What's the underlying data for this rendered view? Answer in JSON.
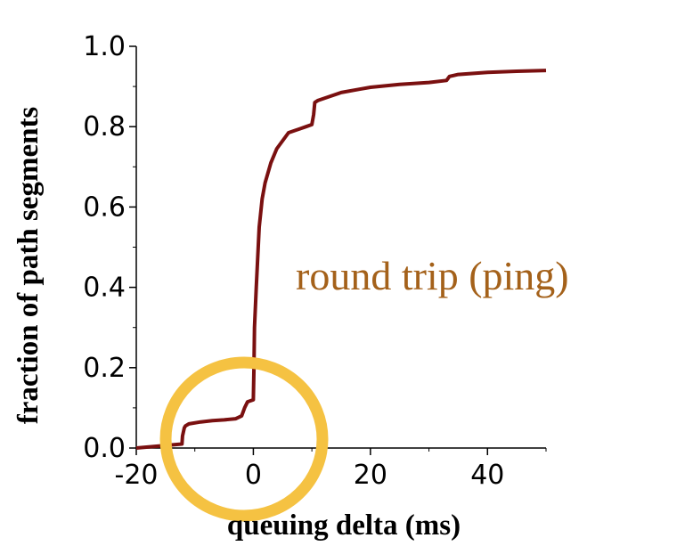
{
  "chart_data": {
    "type": "line",
    "xlabel": "queuing delta (ms)",
    "ylabel": "fraction of path segments",
    "xlim": [
      -20,
      50
    ],
    "ylim": [
      0,
      1.0
    ],
    "x_ticks": [
      "-20",
      "0",
      "20",
      "40"
    ],
    "y_ticks": [
      "0.0",
      "0.2",
      "0.4",
      "0.6",
      "0.8",
      "1.0"
    ],
    "grid": false,
    "annotation": "round trip (ping)",
    "series": [
      {
        "color": "#7a1010",
        "x": [
          -20,
          -12.2,
          -12.1,
          -11.8,
          -11.6,
          -11,
          -9,
          -7,
          -5,
          -3,
          -2,
          -1.5,
          -1,
          0,
          0.1,
          0.2,
          0.5,
          1,
          1.5,
          2,
          3,
          4,
          5,
          6,
          7,
          8,
          9,
          10,
          10.3,
          10.5,
          11,
          12,
          13,
          15,
          18,
          20,
          25,
          30,
          33,
          33.5,
          35,
          40,
          45,
          50
        ],
        "y": [
          0,
          0.01,
          0.03,
          0.05,
          0.055,
          0.06,
          0.065,
          0.068,
          0.07,
          0.073,
          0.08,
          0.1,
          0.115,
          0.12,
          0.2,
          0.3,
          0.4,
          0.55,
          0.62,
          0.66,
          0.71,
          0.745,
          0.765,
          0.785,
          0.79,
          0.795,
          0.8,
          0.805,
          0.83,
          0.86,
          0.865,
          0.87,
          0.875,
          0.885,
          0.893,
          0.898,
          0.905,
          0.91,
          0.915,
          0.925,
          0.93,
          0.935,
          0.938,
          0.94
        ]
      }
    ]
  },
  "colors": {
    "line": "#7a1010",
    "annotation": "#a4611a",
    "circle": "#f5c242",
    "axis": "#000000"
  }
}
